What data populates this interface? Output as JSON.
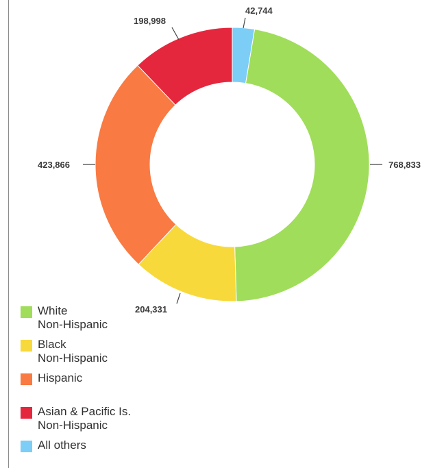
{
  "chart_data": {
    "type": "pie",
    "donut": true,
    "start_angle_deg": 0,
    "direction": "clockwise",
    "legend_position": "bottom-left",
    "slices": [
      {
        "name": "All others",
        "legend_lines": [
          "All others"
        ],
        "value": 42744,
        "label": "42,744",
        "color": "#7ccef7"
      },
      {
        "name": "White Non-Hispanic",
        "legend_lines": [
          "White",
          "Non-Hispanic"
        ],
        "value": 768833,
        "label": "768,833",
        "color": "#a0dd5a"
      },
      {
        "name": "Black Non-Hispanic",
        "legend_lines": [
          "Black",
          "Non-Hispanic"
        ],
        "value": 204331,
        "label": "204,331",
        "color": "#f8d93b"
      },
      {
        "name": "Hispanic",
        "legend_lines": [
          "Hispanic"
        ],
        "value": 423866,
        "label": "423,866",
        "color": "#f97a42"
      },
      {
        "name": "Asian & Pacific Is. Non-Hispanic",
        "legend_lines": [
          "Asian & Pacific Is.",
          "Non-Hispanic"
        ],
        "value": 198998,
        "label": "198,998",
        "color": "#e5273e"
      }
    ],
    "legend_order": [
      "White Non-Hispanic",
      "Black Non-Hispanic",
      "Hispanic",
      "Asian & Pacific Is. Non-Hispanic",
      "All others"
    ]
  }
}
